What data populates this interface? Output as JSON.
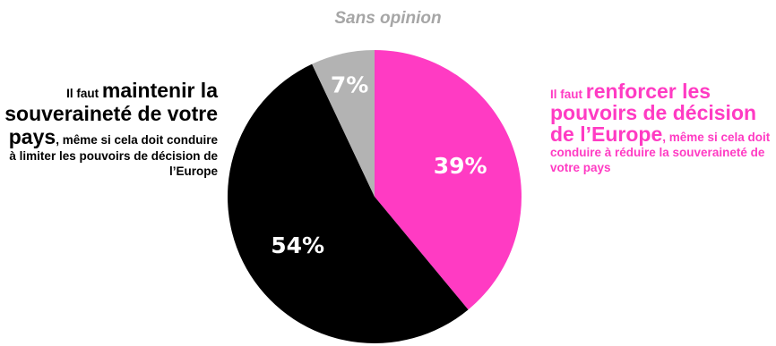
{
  "chart_data": {
    "type": "pie",
    "slices": [
      {
        "label": "Il faut renforcer les pouvoirs de décision de l’Europe, même si cela doit conduire à réduire la souveraineté de votre pays",
        "value": 39,
        "value_label": "39%",
        "color": "#ff3bc3"
      },
      {
        "label": "Il faut maintenir la souveraineté de votre pays, même si cela doit conduire à limiter les pouvoirs de décision de l’Europe",
        "value": 54,
        "value_label": "54%",
        "color": "#000000"
      },
      {
        "label": "Sans opinion",
        "value": 7,
        "value_label": "7%",
        "color": "#b3b3b3"
      }
    ],
    "start_angle_deg": 0,
    "direction": "clockwise"
  },
  "labels": {
    "top": "Sans opinion",
    "left": {
      "prefix": "Il faut ",
      "emphasis": "maintenir la souveraineté de votre pays",
      "suffix": ", même si cela doit conduire à limiter les pouvoirs de décision de l’Europe"
    },
    "right": {
      "prefix": "Il faut ",
      "emphasis": "renforcer les pouvoirs de décision de l’Europe",
      "suffix": ", même si cela doit conduire à réduire la souveraineté de votre pays"
    }
  }
}
